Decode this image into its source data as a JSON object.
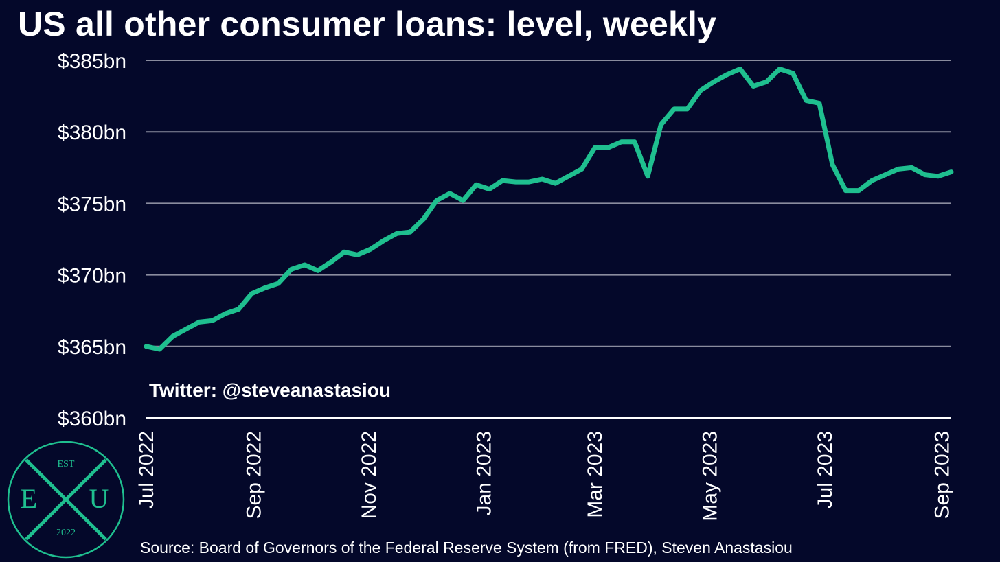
{
  "title": "US all other consumer loans: level, weekly",
  "watermark": "Twitter: @steveanastasiou",
  "source": "Source: Board of Governors of the Federal Reserve System (from FRED), Steven Anastasiou",
  "logo": {
    "est": "EST",
    "left_letter": "E",
    "right_letter": "U",
    "year": "2022"
  },
  "colors": {
    "background": "#04082a",
    "line": "#1fbf8f",
    "grid": "#8a8c9e",
    "logo": "#1fbf8f"
  },
  "chart_data": {
    "type": "line",
    "ylim": [
      360,
      385
    ],
    "yticks": [
      360,
      365,
      370,
      375,
      380,
      385
    ],
    "ytick_labels": [
      "$360bn",
      "$365bn",
      "$370bn",
      "$375bn",
      "$380bn",
      "$385bn"
    ],
    "xlim": [
      "2022-07-06",
      "2023-09-06"
    ],
    "xticks": [
      "2022-07-01",
      "2022-09-01",
      "2022-11-01",
      "2023-01-01",
      "2023-03-01",
      "2023-05-01",
      "2023-07-01",
      "2023-09-01"
    ],
    "xtick_labels": [
      "Jul 2022",
      "Sep 2022",
      "Nov 2022",
      "Jan 2023",
      "Mar 2023",
      "May 2023",
      "Jul 2023",
      "Sep 2023"
    ],
    "grid": true,
    "series": [
      {
        "x": [
          "2022-07-06",
          "2022-07-13",
          "2022-07-20",
          "2022-07-27",
          "2022-08-03",
          "2022-08-10",
          "2022-08-17",
          "2022-08-24",
          "2022-08-31",
          "2022-09-07",
          "2022-09-14",
          "2022-09-21",
          "2022-09-28",
          "2022-10-05",
          "2022-10-12",
          "2022-10-19",
          "2022-10-26",
          "2022-11-02",
          "2022-11-09",
          "2022-11-16",
          "2022-11-23",
          "2022-11-30",
          "2022-12-07",
          "2022-12-14",
          "2022-12-21",
          "2022-12-28",
          "2023-01-04",
          "2023-01-11",
          "2023-01-18",
          "2023-01-25",
          "2023-02-01",
          "2023-02-08",
          "2023-02-15",
          "2023-02-22",
          "2023-03-01",
          "2023-03-08",
          "2023-03-15",
          "2023-03-22",
          "2023-03-29",
          "2023-04-05",
          "2023-04-12",
          "2023-04-19",
          "2023-04-26",
          "2023-05-03",
          "2023-05-10",
          "2023-05-17",
          "2023-05-24",
          "2023-05-31",
          "2023-06-07",
          "2023-06-14",
          "2023-06-21",
          "2023-06-28",
          "2023-07-05",
          "2023-07-12",
          "2023-07-19",
          "2023-07-26",
          "2023-08-02",
          "2023-08-09",
          "2023-08-16",
          "2023-08-23",
          "2023-08-30",
          "2023-09-06"
        ],
        "values": [
          365.0,
          364.8,
          365.7,
          366.2,
          366.7,
          366.8,
          367.3,
          367.6,
          368.7,
          369.1,
          369.4,
          370.4,
          370.7,
          370.3,
          370.9,
          371.6,
          371.4,
          371.8,
          372.4,
          372.9,
          373.0,
          373.9,
          375.2,
          375.7,
          375.2,
          376.3,
          376.0,
          376.6,
          376.5,
          376.5,
          376.7,
          376.4,
          376.9,
          377.4,
          378.9,
          378.9,
          379.3,
          379.3,
          376.9,
          380.5,
          381.6,
          381.6,
          382.9,
          383.5,
          384.0,
          384.4,
          383.2,
          383.5,
          384.4,
          384.1,
          382.2,
          382.0,
          377.7,
          375.9,
          375.9,
          376.6,
          377.0,
          377.4,
          377.5,
          377.0,
          376.9,
          377.2
        ]
      }
    ]
  }
}
